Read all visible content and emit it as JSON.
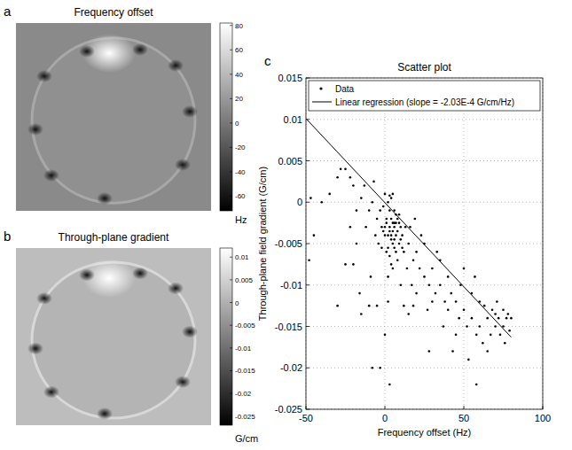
{
  "chart_data": [
    {
      "type": "image",
      "panel_label": "a",
      "title": "Frequency offset",
      "colorbar_range": [
        -72,
        82
      ],
      "colorbar_ticks": [
        80,
        60,
        40,
        20,
        0,
        -20,
        -40,
        -60
      ],
      "colorbar_label": "Hz"
    },
    {
      "type": "image",
      "panel_label": "b",
      "title": "Through-plane gradient",
      "colorbar_range": [
        -0.027,
        0.012
      ],
      "colorbar_ticks": [
        0.01,
        0.005,
        0,
        -0.005,
        -0.01,
        -0.015,
        -0.02,
        -0.025
      ],
      "colorbar_label": "G/cm"
    },
    {
      "type": "scatter",
      "panel_label": "c",
      "title": "Scatter plot",
      "x_label": "Frequency offset (Hz)",
      "y_label": "Through-plane field gradient (G/cm)",
      "xlim": [
        -50,
        100
      ],
      "xticks": [
        -50,
        0,
        50,
        100
      ],
      "ylim": [
        -0.025,
        0.015
      ],
      "yticks": [
        -0.025,
        -0.02,
        -0.015,
        -0.01,
        -0.005,
        0,
        0.005,
        0.01,
        0.015
      ],
      "grid": true,
      "legend": "top",
      "series": [
        {
          "name": "Data",
          "type": "scatter",
          "marker": "dot",
          "color": "#000000",
          "x": [
            0,
            2,
            4,
            5,
            6,
            3,
            1,
            7,
            8,
            9,
            4,
            5,
            2,
            6,
            3,
            7,
            10,
            1,
            0,
            -2,
            -4,
            -5,
            -3,
            -6,
            11,
            12,
            13,
            8,
            5,
            2,
            4,
            6,
            9,
            3,
            0,
            -1,
            -10,
            -15,
            -20,
            -25,
            -30,
            -28,
            -22,
            -18,
            -12,
            -8,
            -35,
            -40,
            -45,
            -48,
            -47,
            -20,
            -25,
            -30,
            -15,
            -10,
            -5,
            -18,
            -13,
            -7,
            -22,
            -8,
            -3,
            3,
            2,
            0,
            -9,
            -16,
            15,
            18,
            20,
            22,
            25,
            25,
            28,
            30,
            30,
            32,
            35,
            35,
            38,
            40,
            40,
            42,
            45,
            45,
            48,
            50,
            50,
            52,
            55,
            55,
            58,
            60,
            60,
            62,
            65,
            65,
            68,
            70,
            70,
            72,
            73,
            75,
            75,
            77,
            78,
            79,
            80,
            76,
            71,
            67,
            63,
            57,
            47,
            37,
            27,
            20,
            17,
            23,
            28,
            33,
            43,
            53,
            58,
            12,
            15,
            18,
            10,
            14,
            16,
            19,
            1,
            2,
            3,
            5,
            6,
            7,
            8,
            9,
            4,
            11,
            10,
            -1,
            -2,
            3,
            4,
            5,
            6,
            7
          ],
          "values": [
            -0.003,
            -0.004,
            -0.002,
            -0.005,
            -0.003,
            -0.001,
            -0.006,
            -0.004,
            -0.002,
            -0.005,
            0.0005,
            0.001,
            0,
            -0.001,
            -0.0035,
            -0.006,
            -0.003,
            -0.002,
            -0.004,
            -0.003,
            -0.005,
            -0.002,
            -0.001,
            -0.004,
            -0.004,
            -0.006,
            -0.003,
            -0.007,
            -0.008,
            -0.009,
            -0.0045,
            -0.0025,
            -0.0015,
            0.0008,
            0.001,
            -0.0005,
            -0.001,
            0.0005,
            0.002,
            0.004,
            0.003,
            0.004,
            0.003,
            -0.001,
            -0.003,
            0,
            0.001,
            0,
            -0.004,
            -0.007,
            0.0005,
            -0.0075,
            -0.0075,
            -0.0125,
            -0.0135,
            -0.0125,
            -0.0125,
            -0.005,
            0.002,
            0.0025,
            -0.003,
            -0.02,
            -0.02,
            -0.022,
            -0.012,
            -0.016,
            -0.009,
            -0.011,
            -0.005,
            -0.007,
            -0.006,
            -0.008,
            -0.009,
            -0.005,
            -0.01,
            -0.008,
            -0.012,
            -0.011,
            -0.01,
            -0.007,
            -0.012,
            -0.009,
            -0.013,
            -0.011,
            -0.012,
            -0.016,
            -0.01,
            -0.013,
            -0.008,
            -0.015,
            -0.011,
            -0.014,
            -0.016,
            -0.012,
            -0.015,
            -0.017,
            -0.014,
            -0.018,
            -0.013,
            -0.015,
            -0.0135,
            -0.014,
            -0.016,
            -0.013,
            -0.015,
            -0.014,
            -0.0135,
            -0.0155,
            -0.014,
            -0.017,
            -0.012,
            -0.016,
            -0.0125,
            -0.009,
            -0.014,
            -0.015,
            -0.013,
            -0.011,
            -0.01,
            -0.004,
            -0.018,
            -0.006,
            -0.018,
            -0.019,
            -0.022,
            -0.0125,
            -0.0135,
            -0.0125,
            -0.01,
            -0.008,
            -0.003,
            -0.002,
            -0.0025,
            -0.0055,
            -0.0065,
            -0.0035,
            -0.0045,
            -0.0015,
            -0.0035,
            -0.0025,
            -0.0075,
            -0.0055,
            -0.0045,
            -0.0035,
            -0.0055,
            -0.003,
            -0.004,
            -0.0025,
            -0.0055,
            -0.0025
          ]
        },
        {
          "name": "Linear regression (slope = -2.03E-4 G/cm/Hz)",
          "type": "line",
          "line_style": "solid",
          "color": "#000000",
          "x": [
            -50,
            80
          ],
          "values": [
            0.0101,
            -0.0163
          ]
        }
      ]
    }
  ]
}
